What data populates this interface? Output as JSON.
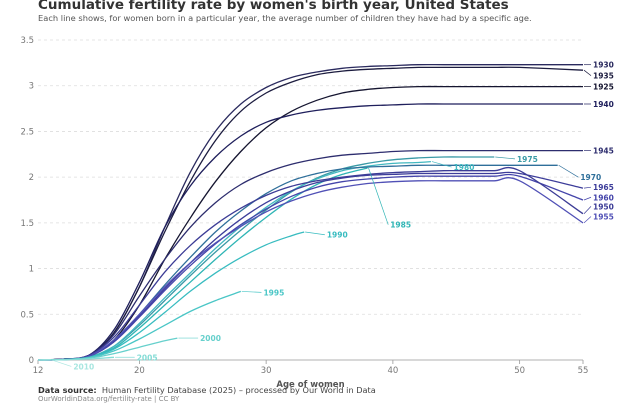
{
  "title": "Cumulative fertility rate by women's birth year, United States",
  "subtitle": "Each line shows, for women born in a particular year, the average number of children they have had by a specific age.",
  "source_label": "Data source:",
  "source_text": "Human Fertility Database (2025) – processed by Our World in Data",
  "footnote": "OurWorldinData.org/fertility-rate | CC BY",
  "chart_data": {
    "type": "line",
    "title": "Cumulative fertility rate by women's birth year, United States",
    "xlabel": "Age of women",
    "ylabel": "",
    "xlim": [
      12,
      55
    ],
    "ylim": [
      0,
      3.5
    ],
    "xticks": [
      12,
      20,
      30,
      40,
      50,
      55
    ],
    "yticks": [
      0,
      0.5,
      1,
      1.5,
      2,
      2.5,
      3,
      3.5
    ],
    "grid": "horizontal dashed",
    "series": [
      {
        "name": "1930",
        "color": "#2a2a5e",
        "x": [
          12,
          14,
          16,
          18,
          20,
          22,
          24,
          26,
          28,
          30,
          32,
          34,
          36,
          38,
          40,
          42,
          44,
          46,
          48,
          50,
          55
        ],
        "y": [
          0,
          0.01,
          0.05,
          0.3,
          0.8,
          1.45,
          2.05,
          2.5,
          2.8,
          2.98,
          3.09,
          3.15,
          3.19,
          3.21,
          3.22,
          3.23,
          3.23,
          3.23,
          3.23,
          3.23,
          3.23
        ]
      },
      {
        "name": "1935",
        "color": "#1c1c3f",
        "x": [
          12,
          14,
          16,
          18,
          20,
          22,
          24,
          26,
          28,
          30,
          32,
          34,
          36,
          38,
          40,
          42,
          44,
          46,
          48,
          50,
          55
        ],
        "y": [
          0,
          0.01,
          0.05,
          0.3,
          0.8,
          1.4,
          1.95,
          2.4,
          2.72,
          2.92,
          3.04,
          3.12,
          3.16,
          3.18,
          3.19,
          3.2,
          3.2,
          3.2,
          3.2,
          3.2,
          3.17
        ]
      },
      {
        "name": "1925",
        "color": "#151530",
        "x": [
          12,
          14,
          16,
          18,
          20,
          22,
          24,
          26,
          28,
          30,
          32,
          34,
          36,
          38,
          40,
          42,
          44,
          46,
          48,
          50,
          55
        ],
        "y": [
          0,
          0.01,
          0.04,
          0.22,
          0.6,
          1.1,
          1.55,
          1.95,
          2.28,
          2.54,
          2.72,
          2.84,
          2.92,
          2.96,
          2.98,
          2.99,
          2.99,
          2.99,
          2.99,
          2.99,
          2.99
        ]
      },
      {
        "name": "1940",
        "color": "#1f1f5c",
        "x": [
          12,
          14,
          16,
          18,
          20,
          22,
          24,
          26,
          28,
          30,
          32,
          34,
          36,
          38,
          40,
          42,
          44,
          46,
          48,
          50,
          55
        ],
        "y": [
          0,
          0.01,
          0.05,
          0.33,
          0.85,
          1.45,
          1.9,
          2.22,
          2.45,
          2.6,
          2.68,
          2.73,
          2.76,
          2.78,
          2.79,
          2.8,
          2.8,
          2.8,
          2.8,
          2.8,
          2.8
        ]
      },
      {
        "name": "1945",
        "color": "#2d2d6e",
        "x": [
          12,
          14,
          16,
          18,
          20,
          22,
          24,
          26,
          28,
          30,
          32,
          34,
          36,
          38,
          40,
          42,
          44,
          46,
          48,
          50,
          55
        ],
        "y": [
          0,
          0.01,
          0.05,
          0.28,
          0.7,
          1.1,
          1.45,
          1.72,
          1.92,
          2.05,
          2.14,
          2.2,
          2.24,
          2.26,
          2.28,
          2.29,
          2.29,
          2.29,
          2.29,
          2.29,
          2.29
        ]
      },
      {
        "name": "1975",
        "color": "#3a9aa6",
        "x": [
          12,
          14,
          16,
          18,
          20,
          22,
          24,
          26,
          28,
          30,
          32,
          34,
          36,
          38,
          40,
          42,
          44,
          46,
          48
        ],
        "y": [
          0,
          0.005,
          0.03,
          0.15,
          0.38,
          0.65,
          0.92,
          1.18,
          1.42,
          1.64,
          1.84,
          1.99,
          2.09,
          2.15,
          2.19,
          2.21,
          2.22,
          2.22,
          2.22
        ]
      },
      {
        "name": "1980",
        "color": "#42b8c0",
        "x": [
          12,
          14,
          16,
          18,
          20,
          22,
          24,
          26,
          28,
          30,
          32,
          34,
          36,
          38,
          40,
          42,
          43
        ],
        "y": [
          0,
          0.005,
          0.03,
          0.15,
          0.4,
          0.68,
          0.95,
          1.22,
          1.46,
          1.67,
          1.85,
          1.98,
          2.07,
          2.12,
          2.15,
          2.16,
          2.17
        ]
      },
      {
        "name": "1985",
        "color": "#2fb5b5",
        "x": [
          12,
          14,
          16,
          18,
          20,
          22,
          24,
          26,
          28,
          30,
          32,
          34,
          36,
          38
        ],
        "y": [
          0,
          0.005,
          0.03,
          0.13,
          0.35,
          0.6,
          0.85,
          1.1,
          1.34,
          1.56,
          1.76,
          1.92,
          2.03,
          2.1
        ]
      },
      {
        "name": "1970",
        "color": "#2f6f9a",
        "x": [
          12,
          14,
          16,
          18,
          20,
          22,
          24,
          26,
          28,
          30,
          32,
          34,
          36,
          38,
          40,
          42,
          44,
          46,
          48,
          50,
          52,
          53
        ],
        "y": [
          0,
          0.005,
          0.04,
          0.2,
          0.5,
          0.82,
          1.12,
          1.4,
          1.63,
          1.82,
          1.96,
          2.04,
          2.09,
          2.11,
          2.12,
          2.13,
          2.13,
          2.13,
          2.13,
          2.13,
          2.13,
          2.13
        ]
      },
      {
        "name": "1965",
        "color": "#3d3d9a",
        "x": [
          12,
          14,
          16,
          18,
          20,
          22,
          24,
          26,
          28,
          30,
          32,
          34,
          36,
          38,
          40,
          42,
          44,
          46,
          48,
          50,
          55
        ],
        "y": [
          0,
          0.005,
          0.04,
          0.2,
          0.48,
          0.78,
          1.06,
          1.32,
          1.54,
          1.72,
          1.85,
          1.94,
          1.99,
          2.02,
          2.03,
          2.04,
          2.04,
          2.04,
          2.04,
          2.04,
          1.88
        ]
      },
      {
        "name": "1960",
        "color": "#4444aa",
        "x": [
          12,
          14,
          16,
          18,
          20,
          22,
          24,
          26,
          28,
          30,
          32,
          34,
          36,
          38,
          40,
          42,
          44,
          46,
          48,
          50,
          55
        ],
        "y": [
          0,
          0.005,
          0.04,
          0.2,
          0.47,
          0.76,
          1.03,
          1.27,
          1.48,
          1.65,
          1.79,
          1.89,
          1.95,
          1.98,
          2.0,
          2.01,
          2.01,
          2.01,
          2.01,
          2.01,
          1.75
        ]
      },
      {
        "name": "1950",
        "color": "#3c3c96",
        "x": [
          12,
          14,
          16,
          18,
          20,
          22,
          24,
          26,
          28,
          30,
          32,
          34,
          36,
          38,
          40,
          42,
          44,
          46,
          48,
          50,
          55
        ],
        "y": [
          0,
          0.01,
          0.05,
          0.25,
          0.6,
          0.96,
          1.25,
          1.48,
          1.66,
          1.8,
          1.9,
          1.96,
          2.0,
          2.03,
          2.05,
          2.06,
          2.07,
          2.07,
          2.07,
          2.07,
          1.6
        ]
      },
      {
        "name": "1955",
        "color": "#5050b6",
        "x": [
          12,
          14,
          16,
          18,
          20,
          22,
          24,
          26,
          28,
          30,
          32,
          34,
          36,
          38,
          40,
          42,
          44,
          46,
          48,
          50,
          55
        ],
        "y": [
          0,
          0.005,
          0.04,
          0.22,
          0.5,
          0.8,
          1.06,
          1.28,
          1.46,
          1.62,
          1.74,
          1.83,
          1.89,
          1.93,
          1.95,
          1.96,
          1.96,
          1.96,
          1.96,
          1.96,
          1.5
        ]
      },
      {
        "name": "1990",
        "color": "#38bcc0",
        "x": [
          12,
          14,
          16,
          18,
          20,
          22,
          24,
          26,
          28,
          30,
          32,
          33
        ],
        "y": [
          0,
          0.005,
          0.03,
          0.12,
          0.3,
          0.52,
          0.75,
          0.95,
          1.12,
          1.26,
          1.36,
          1.4
        ]
      },
      {
        "name": "1995",
        "color": "#4ac6c6",
        "x": [
          12,
          14,
          16,
          18,
          20,
          22,
          24,
          26,
          28
        ],
        "y": [
          0,
          0.005,
          0.025,
          0.1,
          0.23,
          0.38,
          0.53,
          0.65,
          0.75
        ]
      },
      {
        "name": "2000",
        "color": "#66d0cc",
        "x": [
          12,
          14,
          16,
          18,
          20,
          22,
          23
        ],
        "y": [
          0,
          0.004,
          0.02,
          0.07,
          0.14,
          0.21,
          0.24
        ]
      },
      {
        "name": "2005",
        "color": "#84dcd6",
        "x": [
          12,
          14,
          16,
          17,
          18
        ],
        "y": [
          0,
          0.003,
          0.012,
          0.02,
          0.03
        ]
      },
      {
        "name": "2010",
        "color": "#a8e6e0",
        "x": [
          12,
          13
        ],
        "y": [
          0,
          0.001
        ]
      }
    ],
    "labels": [
      {
        "series": "1930",
        "text": "1930",
        "x": 55,
        "y": 3.23
      },
      {
        "series": "1935",
        "text": "1935",
        "x": 55,
        "y": 3.11
      },
      {
        "series": "1925",
        "text": "1925",
        "x": 55,
        "y": 2.99
      },
      {
        "series": "1940",
        "text": "1940",
        "x": 55,
        "y": 2.8
      },
      {
        "series": "1945",
        "text": "1945",
        "x": 55,
        "y": 2.29
      },
      {
        "series": "1975",
        "text": "1975",
        "x": 49,
        "y": 2.2
      },
      {
        "series": "1980",
        "text": "1980",
        "x": 44,
        "y": 2.11
      },
      {
        "series": "1970",
        "text": "1970",
        "x": 54,
        "y": 2.0
      },
      {
        "series": "1965",
        "text": "1965",
        "x": 55,
        "y": 1.89
      },
      {
        "series": "1960",
        "text": "1960",
        "x": 55,
        "y": 1.78
      },
      {
        "series": "1950",
        "text": "1950",
        "x": 55,
        "y": 1.68
      },
      {
        "series": "1955",
        "text": "1955",
        "x": 55,
        "y": 1.57
      },
      {
        "series": "1985",
        "text": "1985",
        "x": 39,
        "y": 1.48
      },
      {
        "series": "1990",
        "text": "1990",
        "x": 34,
        "y": 1.37
      },
      {
        "series": "1995",
        "text": "1995",
        "x": 29,
        "y": 0.74
      },
      {
        "series": "2000",
        "text": "2000",
        "x": 24,
        "y": 0.24
      },
      {
        "series": "2005",
        "text": "2005",
        "x": 19,
        "y": 0.03
      },
      {
        "series": "2010",
        "text": "2010",
        "x": 14,
        "y": -0.07
      }
    ]
  }
}
